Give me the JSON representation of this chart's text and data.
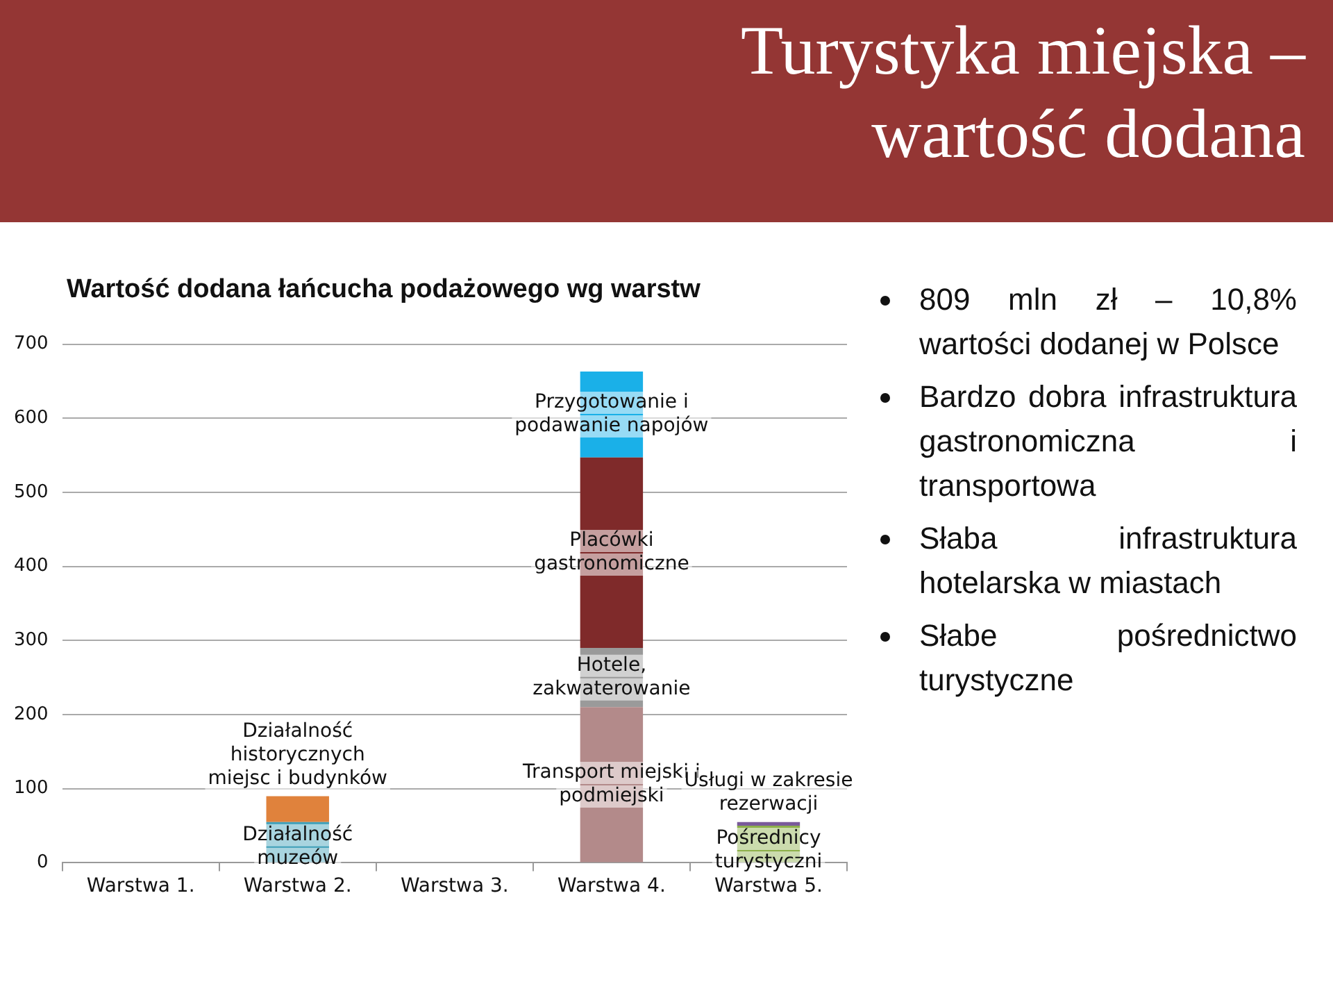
{
  "chart_data": {
    "type": "bar",
    "stacked": true,
    "title": "Turystyka miejska – wartość dodana",
    "subtitle": "Wartość dodana łańcucha podażowego wg warstw",
    "categories": [
      "Warstwa 1.",
      "Warstwa 2.",
      "Warstwa 3.",
      "Warstwa 4.",
      "Warstwa 5."
    ],
    "series": [
      {
        "name": "Działalność muzeów",
        "color": "#3e9fb8",
        "values": [
          null,
          55,
          null,
          null,
          null
        ]
      },
      {
        "name": "Działalność historycznych miejsc i budynków",
        "color": "#e0823c",
        "values": [
          null,
          35,
          null,
          null,
          null
        ]
      },
      {
        "name": "Transport miejski i podmiejski",
        "color": "#b38a8a",
        "values": [
          null,
          null,
          null,
          210,
          null
        ]
      },
      {
        "name": "Hotele, zakwaterowanie",
        "color": "#9a9a9a",
        "values": [
          null,
          null,
          null,
          80,
          null
        ]
      },
      {
        "name": "Placówki gastronomiczne",
        "color": "#7f2a2a",
        "values": [
          null,
          null,
          null,
          257,
          null
        ]
      },
      {
        "name": "Przygotowanie i podawanie napojów",
        "color": "#1ab0e8",
        "values": [
          null,
          null,
          null,
          116,
          null
        ]
      },
      {
        "name": "Pośrednicy turystyczni",
        "color": "#8db04a",
        "values": [
          null,
          null,
          null,
          null,
          50
        ]
      },
      {
        "name": "Usługi w zakresie rezerwacji",
        "color": "#7a5a9a",
        "values": [
          null,
          null,
          null,
          null,
          5
        ]
      }
    ],
    "ylim": [
      0,
      700
    ],
    "yticks": [
      0,
      100,
      200,
      300,
      400,
      500,
      600,
      700
    ],
    "grid": "y",
    "legend": false,
    "annotations": [
      "809 mln zł – 10,8% wartości dodanej w Polsce",
      "Bardzo dobra infrastruktura gastronomiczna i transportowa",
      "Słaba infrastruktura hotelarska w miastach",
      "Słabe pośrednictwo turystyczne"
    ]
  }
}
